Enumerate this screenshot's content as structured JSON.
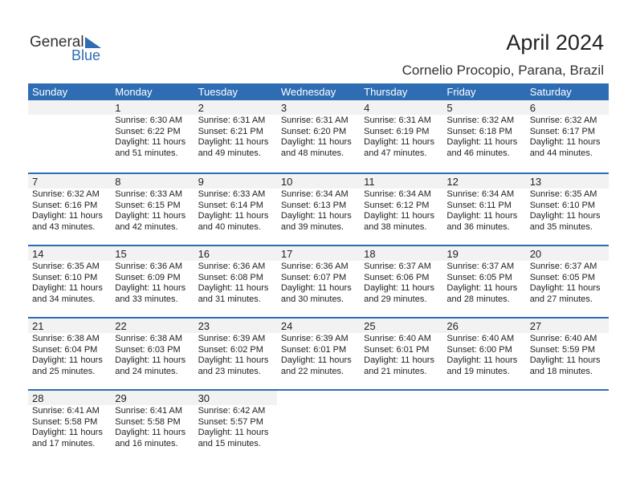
{
  "logo": {
    "text1": "General",
    "text2": "Blue"
  },
  "title": "April 2024",
  "location": "Cornelio Procopio, Parana, Brazil",
  "colors": {
    "accent": "#2e6db4",
    "band": "#f2f2f2"
  },
  "weekdays": [
    "Sunday",
    "Monday",
    "Tuesday",
    "Wednesday",
    "Thursday",
    "Friday",
    "Saturday"
  ],
  "first_weekday_offset": 1,
  "days": [
    {
      "day": "1",
      "sunrise": "Sunrise: 6:30 AM",
      "sunset": "Sunset: 6:22 PM",
      "daylight1": "Daylight: 11 hours",
      "daylight2": "and 51 minutes."
    },
    {
      "day": "2",
      "sunrise": "Sunrise: 6:31 AM",
      "sunset": "Sunset: 6:21 PM",
      "daylight1": "Daylight: 11 hours",
      "daylight2": "and 49 minutes."
    },
    {
      "day": "3",
      "sunrise": "Sunrise: 6:31 AM",
      "sunset": "Sunset: 6:20 PM",
      "daylight1": "Daylight: 11 hours",
      "daylight2": "and 48 minutes."
    },
    {
      "day": "4",
      "sunrise": "Sunrise: 6:31 AM",
      "sunset": "Sunset: 6:19 PM",
      "daylight1": "Daylight: 11 hours",
      "daylight2": "and 47 minutes."
    },
    {
      "day": "5",
      "sunrise": "Sunrise: 6:32 AM",
      "sunset": "Sunset: 6:18 PM",
      "daylight1": "Daylight: 11 hours",
      "daylight2": "and 46 minutes."
    },
    {
      "day": "6",
      "sunrise": "Sunrise: 6:32 AM",
      "sunset": "Sunset: 6:17 PM",
      "daylight1": "Daylight: 11 hours",
      "daylight2": "and 44 minutes."
    },
    {
      "day": "7",
      "sunrise": "Sunrise: 6:32 AM",
      "sunset": "Sunset: 6:16 PM",
      "daylight1": "Daylight: 11 hours",
      "daylight2": "and 43 minutes."
    },
    {
      "day": "8",
      "sunrise": "Sunrise: 6:33 AM",
      "sunset": "Sunset: 6:15 PM",
      "daylight1": "Daylight: 11 hours",
      "daylight2": "and 42 minutes."
    },
    {
      "day": "9",
      "sunrise": "Sunrise: 6:33 AM",
      "sunset": "Sunset: 6:14 PM",
      "daylight1": "Daylight: 11 hours",
      "daylight2": "and 40 minutes."
    },
    {
      "day": "10",
      "sunrise": "Sunrise: 6:34 AM",
      "sunset": "Sunset: 6:13 PM",
      "daylight1": "Daylight: 11 hours",
      "daylight2": "and 39 minutes."
    },
    {
      "day": "11",
      "sunrise": "Sunrise: 6:34 AM",
      "sunset": "Sunset: 6:12 PM",
      "daylight1": "Daylight: 11 hours",
      "daylight2": "and 38 minutes."
    },
    {
      "day": "12",
      "sunrise": "Sunrise: 6:34 AM",
      "sunset": "Sunset: 6:11 PM",
      "daylight1": "Daylight: 11 hours",
      "daylight2": "and 36 minutes."
    },
    {
      "day": "13",
      "sunrise": "Sunrise: 6:35 AM",
      "sunset": "Sunset: 6:10 PM",
      "daylight1": "Daylight: 11 hours",
      "daylight2": "and 35 minutes."
    },
    {
      "day": "14",
      "sunrise": "Sunrise: 6:35 AM",
      "sunset": "Sunset: 6:10 PM",
      "daylight1": "Daylight: 11 hours",
      "daylight2": "and 34 minutes."
    },
    {
      "day": "15",
      "sunrise": "Sunrise: 6:36 AM",
      "sunset": "Sunset: 6:09 PM",
      "daylight1": "Daylight: 11 hours",
      "daylight2": "and 33 minutes."
    },
    {
      "day": "16",
      "sunrise": "Sunrise: 6:36 AM",
      "sunset": "Sunset: 6:08 PM",
      "daylight1": "Daylight: 11 hours",
      "daylight2": "and 31 minutes."
    },
    {
      "day": "17",
      "sunrise": "Sunrise: 6:36 AM",
      "sunset": "Sunset: 6:07 PM",
      "daylight1": "Daylight: 11 hours",
      "daylight2": "and 30 minutes."
    },
    {
      "day": "18",
      "sunrise": "Sunrise: 6:37 AM",
      "sunset": "Sunset: 6:06 PM",
      "daylight1": "Daylight: 11 hours",
      "daylight2": "and 29 minutes."
    },
    {
      "day": "19",
      "sunrise": "Sunrise: 6:37 AM",
      "sunset": "Sunset: 6:05 PM",
      "daylight1": "Daylight: 11 hours",
      "daylight2": "and 28 minutes."
    },
    {
      "day": "20",
      "sunrise": "Sunrise: 6:37 AM",
      "sunset": "Sunset: 6:05 PM",
      "daylight1": "Daylight: 11 hours",
      "daylight2": "and 27 minutes."
    },
    {
      "day": "21",
      "sunrise": "Sunrise: 6:38 AM",
      "sunset": "Sunset: 6:04 PM",
      "daylight1": "Daylight: 11 hours",
      "daylight2": "and 25 minutes."
    },
    {
      "day": "22",
      "sunrise": "Sunrise: 6:38 AM",
      "sunset": "Sunset: 6:03 PM",
      "daylight1": "Daylight: 11 hours",
      "daylight2": "and 24 minutes."
    },
    {
      "day": "23",
      "sunrise": "Sunrise: 6:39 AM",
      "sunset": "Sunset: 6:02 PM",
      "daylight1": "Daylight: 11 hours",
      "daylight2": "and 23 minutes."
    },
    {
      "day": "24",
      "sunrise": "Sunrise: 6:39 AM",
      "sunset": "Sunset: 6:01 PM",
      "daylight1": "Daylight: 11 hours",
      "daylight2": "and 22 minutes."
    },
    {
      "day": "25",
      "sunrise": "Sunrise: 6:40 AM",
      "sunset": "Sunset: 6:01 PM",
      "daylight1": "Daylight: 11 hours",
      "daylight2": "and 21 minutes."
    },
    {
      "day": "26",
      "sunrise": "Sunrise: 6:40 AM",
      "sunset": "Sunset: 6:00 PM",
      "daylight1": "Daylight: 11 hours",
      "daylight2": "and 19 minutes."
    },
    {
      "day": "27",
      "sunrise": "Sunrise: 6:40 AM",
      "sunset": "Sunset: 5:59 PM",
      "daylight1": "Daylight: 11 hours",
      "daylight2": "and 18 minutes."
    },
    {
      "day": "28",
      "sunrise": "Sunrise: 6:41 AM",
      "sunset": "Sunset: 5:58 PM",
      "daylight1": "Daylight: 11 hours",
      "daylight2": "and 17 minutes."
    },
    {
      "day": "29",
      "sunrise": "Sunrise: 6:41 AM",
      "sunset": "Sunset: 5:58 PM",
      "daylight1": "Daylight: 11 hours",
      "daylight2": "and 16 minutes."
    },
    {
      "day": "30",
      "sunrise": "Sunrise: 6:42 AM",
      "sunset": "Sunset: 5:57 PM",
      "daylight1": "Daylight: 11 hours",
      "daylight2": "and 15 minutes."
    }
  ]
}
